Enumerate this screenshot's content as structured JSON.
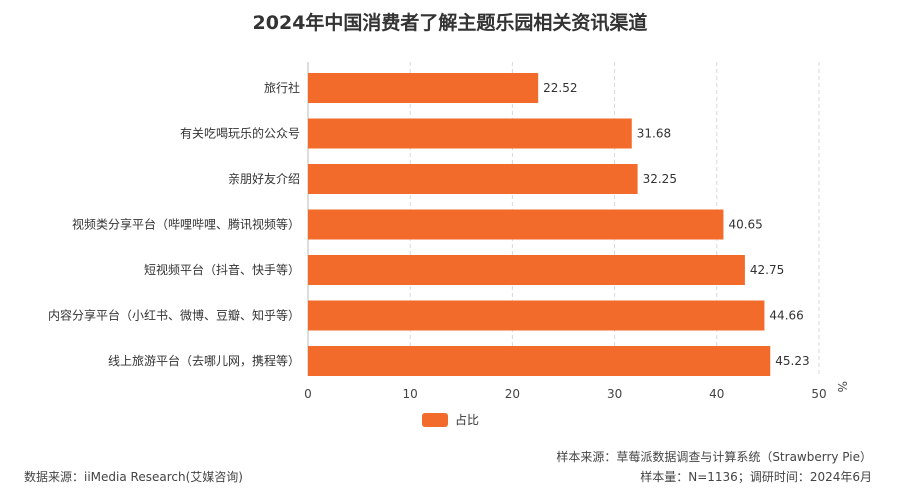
{
  "chart_data": {
    "type": "bar",
    "orientation": "horizontal",
    "title": "2024年中国消费者了解主题乐园相关资讯渠道",
    "categories": [
      "旅行社",
      "有关吃喝玩乐的公众号",
      "亲朋好友介绍",
      "视频类分享平台（哔哩哔哩、腾讯视频等）",
      "短视频平台（抖音、快手等）",
      "内容分享平台（小红书、微博、豆瓣、知乎等）",
      "线上旅游平台（去哪儿网，携程等）"
    ],
    "series": [
      {
        "name": "占比",
        "color": "#f26b2a",
        "values": [
          22.52,
          31.68,
          32.25,
          40.65,
          42.75,
          44.66,
          45.23
        ]
      }
    ],
    "value_labels": [
      "22.52",
      "31.68",
      "32.25",
      "40.65",
      "42.75",
      "44.66",
      "45.23"
    ],
    "xlim": [
      0,
      50
    ],
    "x_ticks": [
      0,
      10,
      20,
      30,
      40,
      50
    ],
    "x_tick_labels": [
      "0",
      "10",
      "20",
      "30",
      "40",
      "50"
    ],
    "unit_label": "%",
    "grid": "vertical-dashed",
    "legend": "bottom-left"
  },
  "footer": {
    "data_source": "数据来源：iiMedia Research(艾媒咨询)",
    "sample_source": "样本来源：草莓派数据调查与计算系统（Strawberry Pie）",
    "sample_info": "样本量：N=1136；调研时间：2024年6月"
  }
}
